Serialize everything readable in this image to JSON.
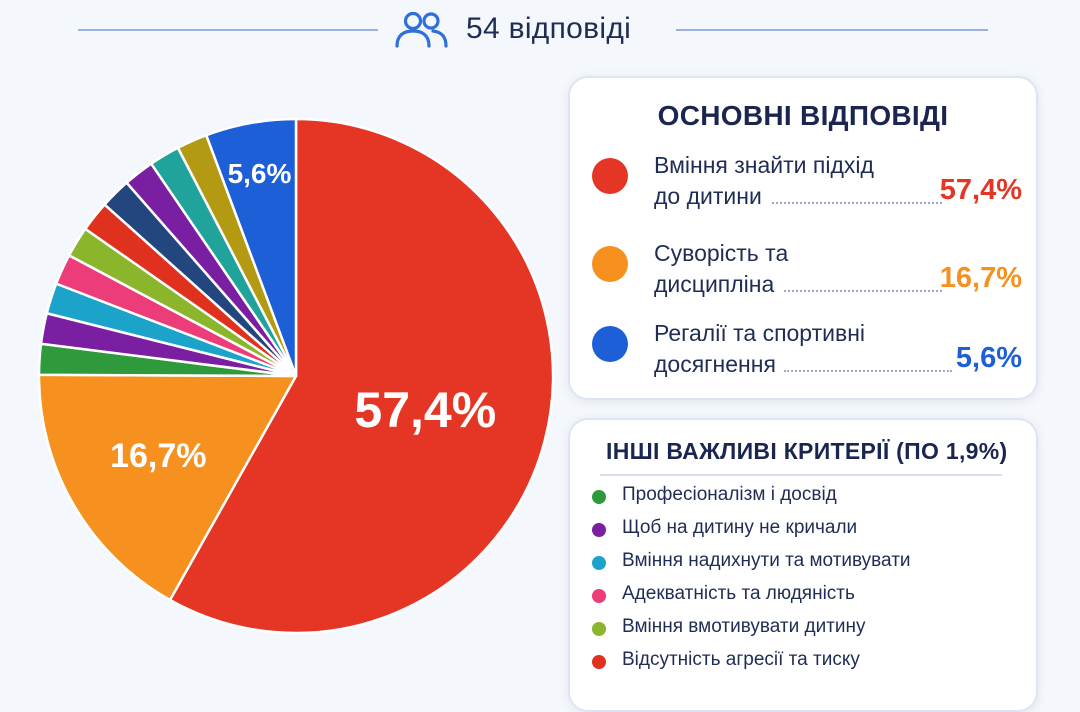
{
  "header": {
    "responses_label": "54 відповіді"
  },
  "main_card": {
    "title": "ОСНОВНІ ВІДПОВІДІ",
    "items": [
      {
        "line1": "Вміння знайти підхід",
        "line2": "до дитини",
        "value": "57,4%",
        "color": "#e53524"
      },
      {
        "line1": "Суворість та",
        "line2": "дисципліна",
        "value": "16,7%",
        "color": "#f6901e"
      },
      {
        "line1": "Регалії та спортивні",
        "line2": "досягнення",
        "value": "5,6%",
        "color": "#1c5fd6"
      }
    ]
  },
  "other_card": {
    "title": "ІНШІ ВАЖЛИВІ КРИТЕРІЇ (ПО 1,9%)",
    "items": [
      {
        "label": "Професіоналізм і досвід",
        "color": "#2f9a3c"
      },
      {
        "label": "Щоб на дитину не кричали",
        "color": "#7b1fa2"
      },
      {
        "label": "Вміння надихнути та мотивувати",
        "color": "#1ca3c9"
      },
      {
        "label": "Адекватність та людяність",
        "color": "#ec3c7a"
      },
      {
        "label": "Вміння вмотивувати дитину",
        "color": "#8bb52a"
      },
      {
        "label": "Відсутність агресії та тиску",
        "color": "#e0301e"
      }
    ]
  },
  "chart_data": {
    "type": "pie",
    "total_responses": 54,
    "slices": [
      {
        "label": "Вміння знайти підхід до дитини",
        "value": 57.4,
        "display": "57,4%",
        "color": "#e53524"
      },
      {
        "label": "Суворість та дисципліна",
        "value": 16.7,
        "display": "16,7%",
        "color": "#f6901e"
      },
      {
        "label": "Професіоналізм і досвід",
        "value": 1.9,
        "color": "#2f9a3c"
      },
      {
        "label": "Щоб на дитину не кричали",
        "value": 1.9,
        "color": "#7b1fa2"
      },
      {
        "label": "Вміння надихнути та мотивувати",
        "value": 1.9,
        "color": "#1ca3c9"
      },
      {
        "label": "Адекватність та людяність",
        "value": 1.9,
        "color": "#ec3c7a"
      },
      {
        "label": "Вміння вмотивувати дитину",
        "value": 1.9,
        "color": "#8bb52a"
      },
      {
        "label": "Відсутність агресії та тиску",
        "value": 1.9,
        "color": "#e0301e"
      },
      {
        "value": 1.9,
        "color": "#24467f"
      },
      {
        "value": 1.9,
        "color": "#7b1fa2"
      },
      {
        "value": 1.9,
        "color": "#20a39b"
      },
      {
        "value": 1.9,
        "color": "#b39a12"
      },
      {
        "label": "Регалії та спортивні досягнення",
        "value": 5.6,
        "display": "5,6%",
        "color": "#1c5fd6"
      }
    ]
  }
}
